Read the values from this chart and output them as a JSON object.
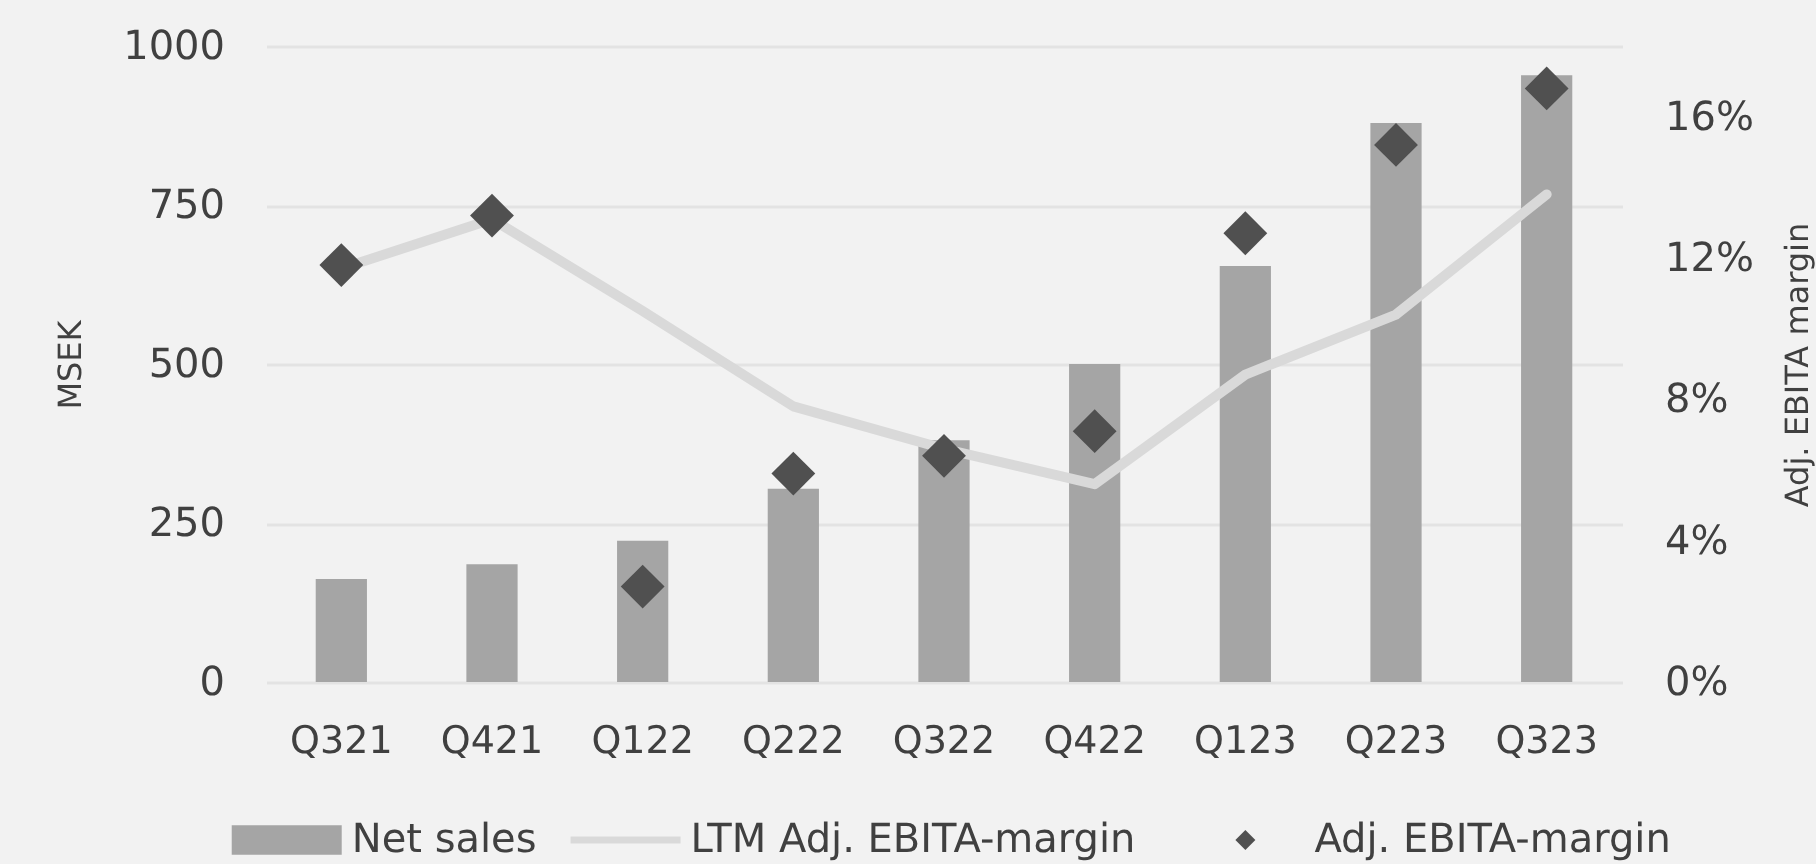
{
  "chart_data": {
    "type": "bar",
    "categories": [
      "Q321",
      "Q421",
      "Q122",
      "Q222",
      "Q322",
      "Q422",
      "Q123",
      "Q223",
      "Q323"
    ],
    "ylabel": "MSEK",
    "y2label": "Adj. EBITA margin",
    "ylim": [
      0,
      1000
    ],
    "yticks": [
      0,
      250,
      500,
      750,
      1000
    ],
    "y2lim": [
      0,
      18
    ],
    "y2ticks": [
      {
        "value": 0,
        "label": "0%"
      },
      {
        "value": 4,
        "label": "4%"
      },
      {
        "value": 8,
        "label": "8%"
      },
      {
        "value": 12,
        "label": "12%"
      },
      {
        "value": 16,
        "label": "16%"
      }
    ],
    "grid": "y",
    "legend": "bottom",
    "series": [
      {
        "name": "Net sales",
        "color": "#a5a5a5",
        "values": [
          162,
          185,
          222,
          304,
          380,
          500,
          654,
          879,
          954
        ]
      },
      {
        "name": "LTM Adj. EBITA-margin",
        "type": "line",
        "axis": "y2",
        "color": "#d9d9d9",
        "values": [
          11.7,
          13.1,
          10.5,
          7.8,
          6.6,
          5.6,
          8.7,
          10.4,
          13.8
        ]
      },
      {
        "name": "Adj. EBITA-margin",
        "type": "scatter",
        "axis": "y2",
        "marker": "diamond",
        "color": "#505050",
        "values": [
          11.8,
          13.2,
          2.7,
          5.9,
          6.4,
          7.1,
          12.7,
          15.2,
          16.8
        ]
      }
    ]
  }
}
